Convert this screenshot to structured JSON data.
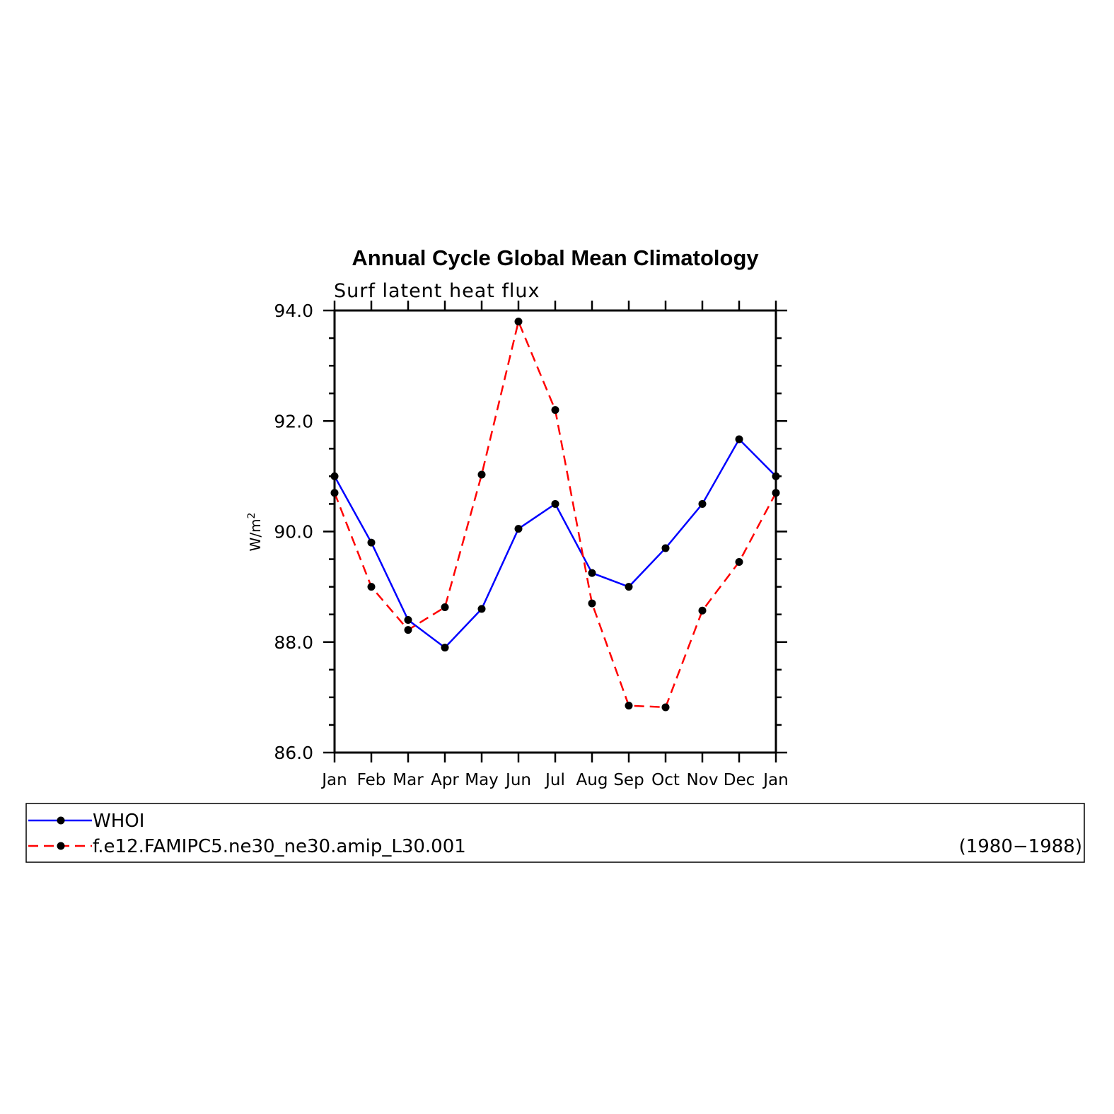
{
  "chart_data": {
    "type": "line",
    "title": "Annual Cycle Global Mean Climatology",
    "subtitle": "Surf latent heat flux",
    "ylabel": "W/m",
    "ylabel_superscript": "2",
    "xlabel": "",
    "ylim": [
      86.0,
      94.0
    ],
    "yticks": [
      "86.0",
      "88.0",
      "90.0",
      "92.0",
      "94.0"
    ],
    "categories": [
      "Jan",
      "Feb",
      "Mar",
      "Apr",
      "May",
      "Jun",
      "Jul",
      "Aug",
      "Sep",
      "Oct",
      "Nov",
      "Dec",
      "Jan"
    ],
    "grid": false,
    "legend_placement": "bottom",
    "series": [
      {
        "name": "WHOI",
        "color": "#0000ff",
        "dash": "solid",
        "marker": "circle",
        "values": [
          91.0,
          89.8,
          88.4,
          87.9,
          88.6,
          90.05,
          90.5,
          89.25,
          89.0,
          89.7,
          90.5,
          91.67,
          91.0
        ]
      },
      {
        "name": "f.e12.FAMIPC5.ne30_ne30.amip_L30.001",
        "color": "#ff0000",
        "dash": "dashed",
        "marker": "circle",
        "values": [
          90.7,
          89.0,
          88.22,
          88.63,
          91.03,
          93.8,
          92.2,
          88.7,
          86.85,
          86.82,
          88.57,
          89.45,
          90.7
        ]
      }
    ],
    "legend_note": "(1980−1988)"
  }
}
